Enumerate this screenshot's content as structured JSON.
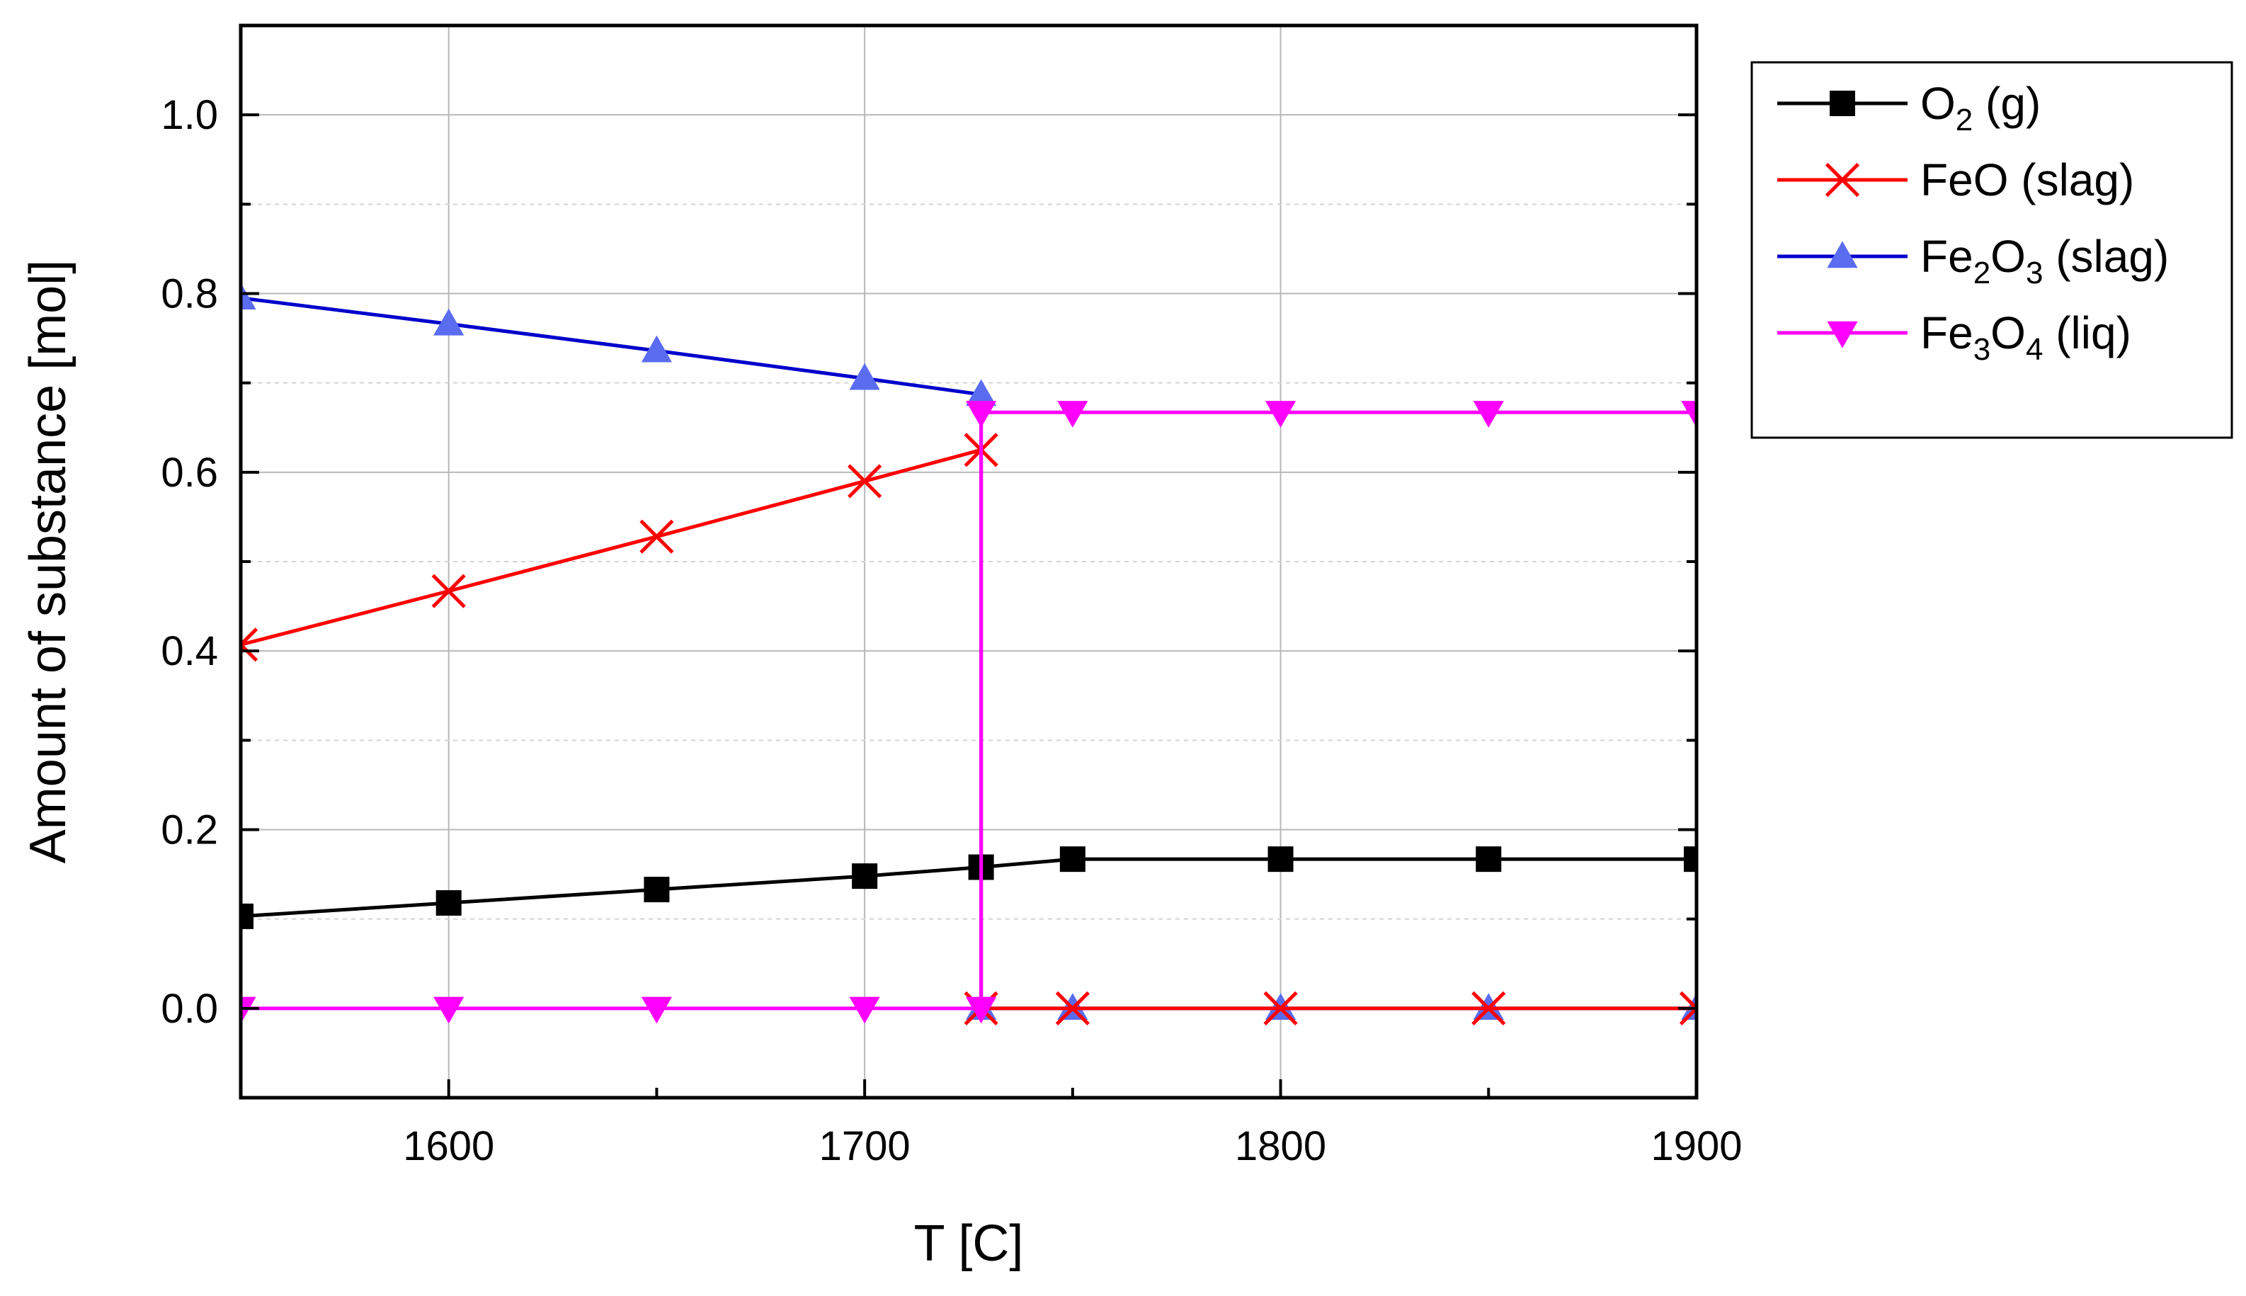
{
  "chart_data": {
    "type": "line",
    "title": "",
    "xlabel": "T [C]",
    "ylabel": "Amount of substance [mol]",
    "xlim": [
      1550,
      1900
    ],
    "ylim": [
      -0.1,
      1.1
    ],
    "x_ticks": [
      1600,
      1700,
      1800,
      1900
    ],
    "x_tick_labels": [
      "1600",
      "1700",
      "1800",
      "1900"
    ],
    "y_ticks": [
      0.0,
      0.2,
      0.4,
      0.6,
      0.8,
      1.0
    ],
    "y_tick_labels": [
      "0.0",
      "0.2",
      "0.4",
      "0.6",
      "0.8",
      "1.0"
    ],
    "grid": true,
    "legend_position": "outside-right-top",
    "series": [
      {
        "name": "O2 (g)",
        "legend_base": "O",
        "legend_sub1": "2",
        "legend_mid": "",
        "legend_sub2": "",
        "legend_suffix": " (g)",
        "color": "#000000",
        "marker": "square",
        "points": [
          [
            1550,
            0.103
          ],
          [
            1600,
            0.118
          ],
          [
            1650,
            0.133
          ],
          [
            1700,
            0.148
          ],
          [
            1728,
            0.158
          ],
          [
            1750,
            0.167
          ],
          [
            1800,
            0.167
          ],
          [
            1850,
            0.167
          ],
          [
            1900,
            0.167
          ]
        ]
      },
      {
        "name": "FeO (slag)",
        "legend_base": "FeO",
        "legend_sub1": "",
        "legend_mid": "",
        "legend_sub2": "",
        "legend_suffix": " (slag)",
        "color": "#ff0000",
        "marker": "x",
        "points": [
          [
            1550,
            0.407
          ],
          [
            1600,
            0.467
          ],
          [
            1650,
            0.528
          ],
          [
            1700,
            0.59
          ],
          [
            1728,
            0.625
          ],
          [
            1728,
            0.0
          ],
          [
            1750,
            0.0
          ],
          [
            1800,
            0.0
          ],
          [
            1850,
            0.0
          ],
          [
            1900,
            0.0
          ]
        ]
      },
      {
        "name": "Fe2O3 (slag)",
        "legend_base": "Fe",
        "legend_sub1": "2",
        "legend_mid": "O",
        "legend_sub2": "3",
        "legend_suffix": " (slag)",
        "color": "#0000cc",
        "marker_fill": "#5a6cf0",
        "marker": "triangle-up",
        "points": [
          [
            1550,
            0.795
          ],
          [
            1600,
            0.766
          ],
          [
            1650,
            0.736
          ],
          [
            1700,
            0.705
          ],
          [
            1728,
            0.687
          ],
          [
            1728,
            0.0
          ],
          [
            1750,
            0.0
          ],
          [
            1800,
            0.0
          ],
          [
            1850,
            0.0
          ],
          [
            1900,
            0.0
          ]
        ]
      },
      {
        "name": "Fe3O4 (liq)",
        "legend_base": "Fe",
        "legend_sub1": "3",
        "legend_mid": "O",
        "legend_sub2": "4",
        "legend_suffix": " (liq)",
        "color": "#ff00ff",
        "marker": "triangle-down",
        "points": [
          [
            1550,
            0.0
          ],
          [
            1600,
            0.0
          ],
          [
            1650,
            0.0
          ],
          [
            1700,
            0.0
          ],
          [
            1728,
            0.0
          ],
          [
            1728,
            0.667
          ],
          [
            1750,
            0.667
          ],
          [
            1800,
            0.667
          ],
          [
            1850,
            0.667
          ],
          [
            1900,
            0.667
          ]
        ]
      }
    ]
  }
}
